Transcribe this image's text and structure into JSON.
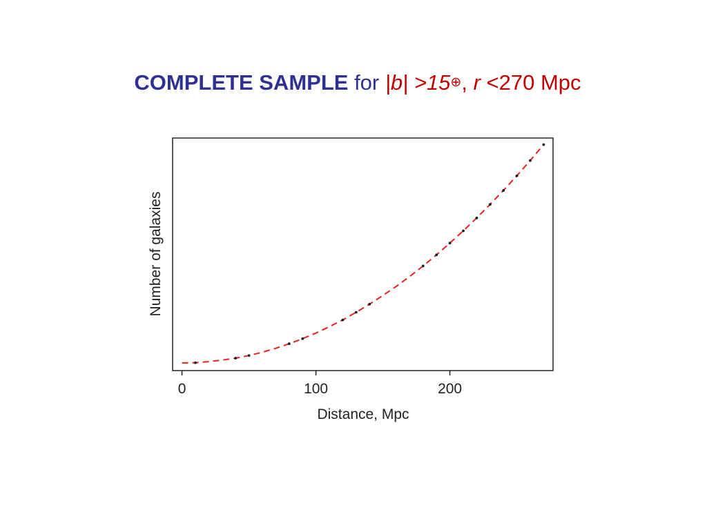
{
  "slide": {
    "title_bold": "COMPLETE SAMPLE",
    "title_for": "for",
    "title_condition_b": "|b| >15",
    "title_degree_symbol": "⊕",
    "title_comma": ",",
    "title_condition_r_var": "r",
    "title_condition_r_rest": "<270 Mpc"
  },
  "colors": {
    "title_blue": "#2e3192",
    "title_red": "#c00000",
    "model_curve": "#e8201f",
    "data_points": "#1a1a1a"
  },
  "chart_data": {
    "type": "scatter",
    "xlabel": "Distance, Mpc",
    "ylabel": "Number of galaxies",
    "xlim": [
      -7,
      277
    ],
    "ylim": [
      -0.035,
      1.03
    ],
    "xticks": [
      0,
      100,
      200
    ],
    "yticks": [],
    "grid": false,
    "legend": "none",
    "series": [
      {
        "style": "dashed-line",
        "color": "#e8201f",
        "x": [
          0,
          10,
          20,
          30,
          40,
          50,
          60,
          70,
          80,
          90,
          100,
          110,
          120,
          130,
          140,
          150,
          160,
          170,
          180,
          190,
          200,
          210,
          220,
          230,
          240,
          250,
          260,
          270
        ],
        "y": [
          0.0,
          0.001,
          0.006,
          0.013,
          0.022,
          0.034,
          0.049,
          0.067,
          0.088,
          0.111,
          0.137,
          0.166,
          0.197,
          0.232,
          0.269,
          0.309,
          0.351,
          0.396,
          0.444,
          0.495,
          0.549,
          0.605,
          0.664,
          0.726,
          0.79,
          0.857,
          0.927,
          1.0
        ]
      },
      {
        "style": "points",
        "color": "#1a1a1a",
        "x": [
          10,
          40,
          50,
          80,
          90,
          120,
          130,
          140,
          180,
          190,
          200,
          210,
          220,
          230,
          240,
          250,
          260,
          270
        ],
        "y": [
          0.001,
          0.022,
          0.034,
          0.088,
          0.111,
          0.197,
          0.232,
          0.269,
          0.444,
          0.495,
          0.549,
          0.605,
          0.664,
          0.726,
          0.79,
          0.857,
          0.927,
          1.0
        ]
      }
    ]
  }
}
